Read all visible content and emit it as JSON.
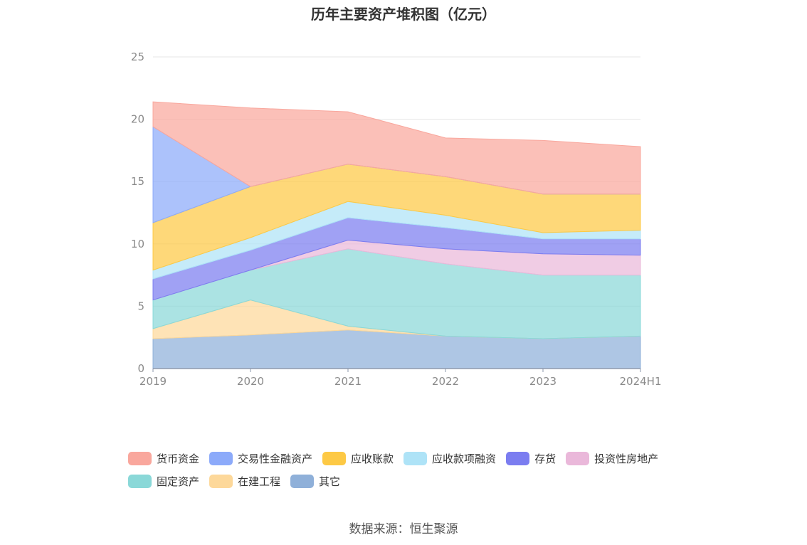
{
  "title": "历年主要资产堆积图（亿元）",
  "source": "数据来源：恒生聚源",
  "chart_data": {
    "type": "area",
    "stacked": true,
    "categories": [
      "2019",
      "2020",
      "2021",
      "2022",
      "2023",
      "2024H1"
    ],
    "ylim": [
      0,
      25
    ],
    "yticks": [
      0,
      5,
      10,
      15,
      20,
      25
    ],
    "grid": true,
    "legend_position": "bottom",
    "series": [
      {
        "name": "其它",
        "color": "#8fb0d9",
        "values": [
          2.4,
          2.7,
          3.1,
          2.6,
          2.4,
          2.6
        ]
      },
      {
        "name": "在建工程",
        "color": "#fdd89a",
        "values": [
          0.8,
          2.8,
          0.3,
          0.0,
          0.0,
          0.0
        ]
      },
      {
        "name": "固定资产",
        "color": "#8ad8d8",
        "values": [
          2.3,
          2.4,
          6.2,
          5.8,
          5.1,
          4.9
        ]
      },
      {
        "name": "投资性房地产",
        "color": "#eab8da",
        "values": [
          0.0,
          0.0,
          0.7,
          1.2,
          1.7,
          1.6
        ]
      },
      {
        "name": "存货",
        "color": "#7b7df0",
        "values": [
          1.7,
          1.6,
          1.8,
          1.7,
          1.2,
          1.3
        ]
      },
      {
        "name": "应收款项融资",
        "color": "#aee3f7",
        "values": [
          0.7,
          1.0,
          1.3,
          1.0,
          0.5,
          0.7
        ]
      },
      {
        "name": "应收账款",
        "color": "#fdc945",
        "values": [
          3.8,
          4.1,
          3.0,
          3.1,
          3.1,
          2.9
        ]
      },
      {
        "name": "交易性金融资产",
        "color": "#8caafa",
        "values": [
          7.7,
          0.0,
          0.0,
          0.0,
          0.0,
          0.0
        ]
      },
      {
        "name": "货币资金",
        "color": "#f9a79d",
        "values": [
          2.0,
          6.3,
          4.2,
          3.1,
          4.3,
          3.8
        ]
      }
    ]
  },
  "legend": {
    "rows": [
      [
        {
          "label": "货币资金",
          "color": "#f9a79d"
        },
        {
          "label": "交易性金融资产",
          "color": "#8caafa"
        },
        {
          "label": "应收账款",
          "color": "#fdc945"
        },
        {
          "label": "应收款项融资",
          "color": "#aee3f7"
        },
        {
          "label": "存货",
          "color": "#7b7df0"
        },
        {
          "label": "投资性房地产",
          "color": "#eab8da"
        }
      ],
      [
        {
          "label": "固定资产",
          "color": "#8ad8d8"
        },
        {
          "label": "在建工程",
          "color": "#fdd89a"
        },
        {
          "label": "其它",
          "color": "#8fb0d9"
        }
      ]
    ]
  }
}
